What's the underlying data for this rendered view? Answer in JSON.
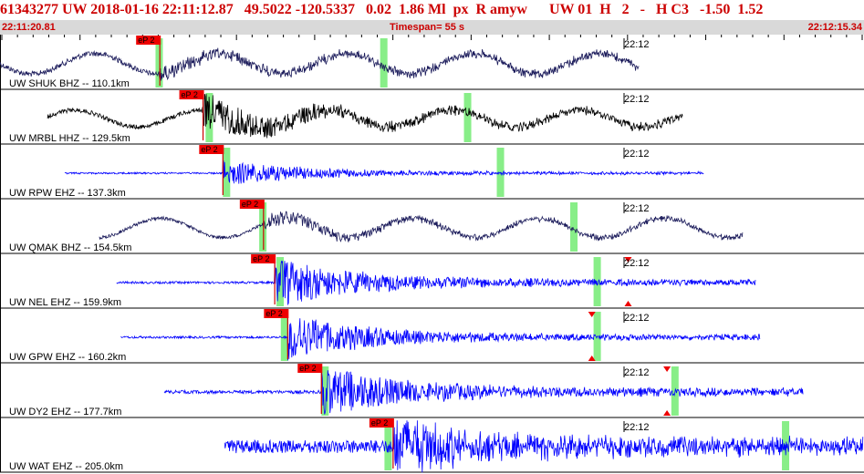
{
  "header": {
    "event_id": "61343277",
    "network": "UW",
    "date": "2018-01-16",
    "time": "22:11:12.87",
    "lat": "49.5022",
    "lon": "-120.5337",
    "depth": "0.02",
    "magnitude": "1.86",
    "mag_type": "Ml",
    "flag1": "px",
    "flag2": "R",
    "author": "amyw",
    "net2": "UW",
    "code": "01",
    "h": "H",
    "n": "2",
    "dash": "-",
    "hc": "H C3",
    "v1": "-1.50",
    "v2": "1.52"
  },
  "subheader": {
    "start_time": "22:11:20.81",
    "timespan_label": "Timespan=",
    "timespan_value": "55 s",
    "end_time": "22:12:15.34"
  },
  "colors": {
    "header_text": "#cc0000",
    "subheader_bg": "#d9d9d9",
    "trace_dark": "#1a1a5a",
    "trace_black": "#000000",
    "trace_blue": "#0000ff",
    "pick_box": "#ee0000",
    "pick_line": "#cc0000",
    "window_green": "#88ee88",
    "arrow_red": "#ee0000"
  },
  "traces": [
    {
      "label": "UW SHUK BHZ -- 110.1km",
      "pick": "eP 2",
      "time_mark": "22:12",
      "style": "dark",
      "start": 0.0,
      "end": 0.74,
      "onset": 0.185,
      "amp": 0.34,
      "noise": 0.05,
      "onset_amp": 0.14,
      "lowfreq": 1.0,
      "hf": 0.35,
      "pick_x": 0.185,
      "green": [
        0.18,
        0.44
      ]
    },
    {
      "label": "UW MRBL HHZ -- 129.5km",
      "pick": "eP 2",
      "time_mark": "22:12",
      "style": "black",
      "start": 0.055,
      "end": 0.79,
      "onset": 0.235,
      "amp": 0.28,
      "noise": 0.04,
      "onset_amp": 0.55,
      "lowfreq": 0.8,
      "hf": 0.4,
      "pick_x": 0.235,
      "green": [
        0.238,
        0.537
      ]
    },
    {
      "label": "UW RPW EHZ -- 137.3km",
      "pick": "eP 2",
      "time_mark": "22:12",
      "style": "blue",
      "start": 0.075,
      "end": 0.815,
      "onset": 0.258,
      "amp": 0.02,
      "noise": 0.015,
      "onset_amp": 0.42,
      "lowfreq": 0.0,
      "hf": 0.12,
      "pick_x": 0.258,
      "green": [
        0.258,
        0.575
      ]
    },
    {
      "label": "UW QMAK BHZ -- 154.5km",
      "pick": "eP 2",
      "time_mark": "22:12",
      "style": "dark",
      "start": 0.115,
      "end": 0.86,
      "onset": 0.305,
      "amp": 0.32,
      "noise": 0.03,
      "onset_amp": 0.22,
      "lowfreq": 1.0,
      "hf": 0.25,
      "pick_x": 0.305,
      "green": [
        0.3,
        0.66
      ]
    },
    {
      "label": "UW NEL EHZ -- 159.9km",
      "pick": "eP 2",
      "time_mark": "22:12",
      "style": "blue",
      "start": 0.135,
      "end": 0.875,
      "onset": 0.318,
      "amp": 0.0,
      "noise": 0.02,
      "onset_amp": 0.75,
      "lowfreq": 0.0,
      "hf": 0.35,
      "pick_x": 0.318,
      "green": [
        0.32,
        0.687
      ],
      "arrow_at": 0.727
    },
    {
      "label": "UW GPW EHZ -- 160.2km",
      "pick": "eP 2",
      "time_mark": "22:12",
      "style": "blue",
      "start": 0.14,
      "end": 0.88,
      "onset": 0.333,
      "amp": 0.0,
      "noise": 0.02,
      "onset_amp": 0.72,
      "lowfreq": 0.0,
      "hf": 0.3,
      "pick_x": 0.333,
      "green": [
        0.325,
        0.687
      ],
      "arrow_at": 0.685
    },
    {
      "label": "UW DY2 EHZ -- 177.7km",
      "pick": "eP 2",
      "time_mark": "22:12",
      "style": "blue",
      "start": 0.19,
      "end": 0.93,
      "onset": 0.372,
      "amp": 0.0,
      "noise": 0.03,
      "onset_amp": 0.8,
      "lowfreq": 0.0,
      "hf": 0.4,
      "pick_x": 0.372,
      "green": [
        0.372,
        0.777
      ],
      "arrow_at": 0.772
    },
    {
      "label": "UW WAT EHZ -- 205.0km",
      "pick": "eP 2",
      "time_mark": "22:12",
      "style": "blue",
      "start": 0.26,
      "end": 1.0,
      "onset": 0.455,
      "amp": 0.0,
      "noise": 0.12,
      "onset_amp": 0.85,
      "lowfreq": 0.0,
      "hf": 0.6,
      "pick_x": 0.455,
      "green": [
        0.445,
        0.905
      ]
    }
  ]
}
